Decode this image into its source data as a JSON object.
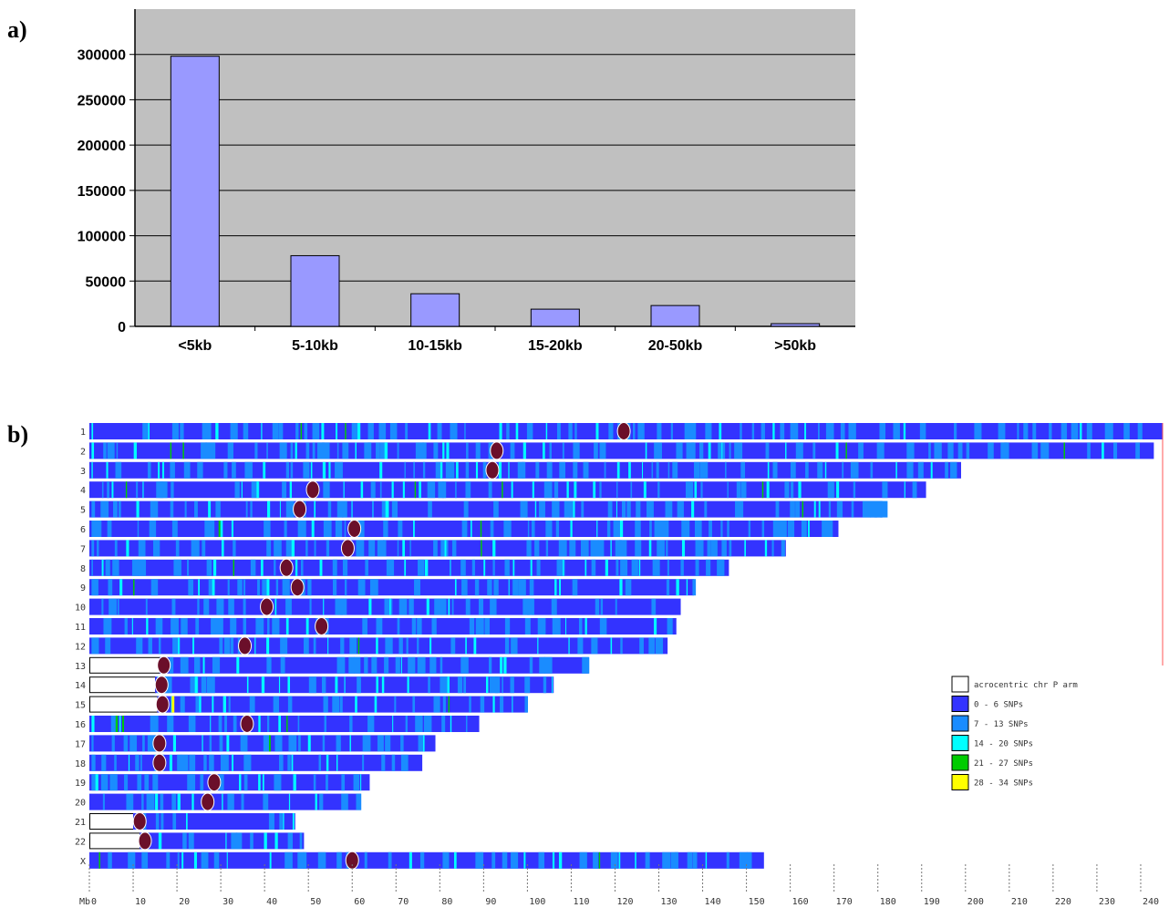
{
  "panels": {
    "a": "a)",
    "b": "b)"
  },
  "colors": {
    "plot_bg": "#c0c0c0",
    "bar_fill": "#9999ff",
    "bin_0_6": "#3333ff",
    "bin_7_13": "#1a8cff",
    "bin_14_20": "#00ffff",
    "bin_21_27": "#00cc00",
    "bin_28_34": "#ffff00",
    "centromere": "#6b0f2a"
  },
  "chart_data": [
    {
      "type": "bar",
      "title": "",
      "xlabel": "",
      "ylabel": "",
      "categories": [
        "<5kb",
        "5-10kb",
        "10-15kb",
        "15-20kb",
        "20-50kb",
        ">50kb"
      ],
      "values": [
        298000,
        78000,
        36000,
        19000,
        23000,
        3000
      ],
      "ylim": [
        0,
        350000
      ],
      "yticks": [
        0,
        50000,
        100000,
        150000,
        200000,
        250000,
        300000
      ],
      "ytick_labels": [
        "0",
        "50000",
        "100000",
        "150000",
        "200000",
        "250000",
        "300000"
      ],
      "grid": true
    },
    {
      "type": "heatmap",
      "title": "",
      "xlabel": "Mb",
      "x_unit": "Mb",
      "xlim": [
        0,
        245
      ],
      "xticks": [
        0,
        10,
        20,
        30,
        40,
        50,
        60,
        70,
        80,
        90,
        100,
        110,
        120,
        130,
        140,
        150,
        160,
        170,
        180,
        190,
        200,
        210,
        220,
        230,
        240
      ],
      "xtick_labels": [
        "0",
        "10",
        "20",
        "30",
        "40",
        "50",
        "60",
        "70",
        "80",
        "90",
        "100",
        "110",
        "120",
        "130",
        "140",
        "150",
        "160",
        "170",
        "180",
        "190",
        "200",
        "210",
        "220",
        "230",
        "240"
      ],
      "legend": [
        {
          "label": "acrocentric chr P arm",
          "color": "#ffffff"
        },
        {
          "label": "0 - 6 SNPs",
          "color": "#3333ff"
        },
        {
          "label": "7 - 13 SNPs",
          "color": "#1a8cff"
        },
        {
          "label": "14 - 20 SNPs",
          "color": "#00ffff"
        },
        {
          "label": "21 - 27 SNPs",
          "color": "#00cc00"
        },
        {
          "label": "28 - 34 SNPs",
          "color": "#ffff00"
        }
      ],
      "legend_position": "right",
      "chromosomes": [
        {
          "name": "1",
          "length": 245,
          "centromere": 122
        },
        {
          "name": "2",
          "length": 243,
          "centromere": 93
        },
        {
          "name": "3",
          "length": 199,
          "centromere": 92
        },
        {
          "name": "4",
          "length": 191,
          "centromere": 51
        },
        {
          "name": "5",
          "length": 181,
          "centromere": 48
        },
        {
          "name": "6",
          "length": 171,
          "centromere": 60.5
        },
        {
          "name": "7",
          "length": 159,
          "centromere": 59
        },
        {
          "name": "8",
          "length": 146,
          "centromere": 45
        },
        {
          "name": "9",
          "length": 138,
          "centromere": 47.5
        },
        {
          "name": "10",
          "length": 135,
          "centromere": 40.5
        },
        {
          "name": "11",
          "length": 134,
          "centromere": 53
        },
        {
          "name": "12",
          "length": 132,
          "centromere": 35.5
        },
        {
          "name": "13",
          "length": 114,
          "centromere": 17,
          "acro": 16
        },
        {
          "name": "14",
          "length": 106,
          "centromere": 16.5,
          "acro": 15
        },
        {
          "name": "15",
          "length": 100,
          "centromere": 16.7,
          "acro": 15.5
        },
        {
          "name": "16",
          "length": 89,
          "centromere": 36
        },
        {
          "name": "17",
          "length": 79,
          "centromere": 16
        },
        {
          "name": "18",
          "length": 76,
          "centromere": 16
        },
        {
          "name": "19",
          "length": 64,
          "centromere": 28.5
        },
        {
          "name": "20",
          "length": 62,
          "centromere": 27
        },
        {
          "name": "21",
          "length": 47,
          "centromere": 11.5,
          "acro": 10
        },
        {
          "name": "22",
          "length": 49,
          "centromere": 12.7,
          "acro": 11.5
        },
        {
          "name": "X",
          "length": 154,
          "centromere": 60
        }
      ]
    }
  ]
}
